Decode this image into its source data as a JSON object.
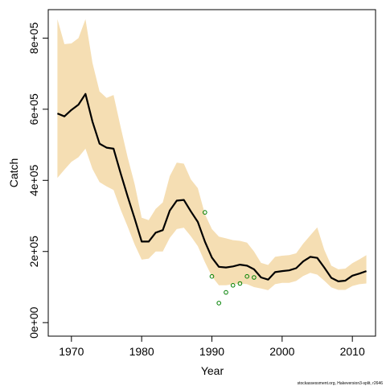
{
  "chart_data": {
    "type": "line",
    "xlabel": "Year",
    "ylabel": "Catch",
    "xlim": [
      1966.7,
      2013.3
    ],
    "ylim": [
      -38000,
      880000
    ],
    "x_ticks": [
      1970,
      1980,
      1990,
      2000,
      2010
    ],
    "x_tick_labels": [
      "1970",
      "1980",
      "1990",
      "2000",
      "2010"
    ],
    "y_ticks": [
      0,
      200000,
      400000,
      600000,
      800000
    ],
    "y_tick_labels": [
      "0e+00",
      "2e+05",
      "4e+05",
      "6e+05",
      "8e+05"
    ],
    "grid": false,
    "legend": "none",
    "footnote": "stockassessment.org, Hakeversion3-split, r2646",
    "colors": {
      "band": "#f5deb3",
      "line": "#000000",
      "points": "#008000"
    },
    "x": [
      1968,
      1969,
      1970,
      1971,
      1972,
      1973,
      1974,
      1975,
      1976,
      1977,
      1978,
      1979,
      1980,
      1981,
      1982,
      1983,
      1984,
      1985,
      1986,
      1987,
      1988,
      1989,
      1990,
      1991,
      1992,
      1993,
      1994,
      1995,
      1996,
      1997,
      1998,
      1999,
      2000,
      2001,
      2002,
      2003,
      2004,
      2005,
      2006,
      2007,
      2008,
      2009,
      2010,
      2011,
      2012
    ],
    "series": [
      {
        "type": "line",
        "values": [
          588000,
          580000,
          598000,
          613000,
          643000,
          565000,
          503000,
          492000,
          489000,
          420000,
          355000,
          293000,
          228000,
          228000,
          253000,
          260000,
          315000,
          343000,
          345000,
          313000,
          283000,
          228000,
          183000,
          157000,
          155000,
          158000,
          163000,
          160000,
          150000,
          127000,
          121000,
          142000,
          145000,
          147000,
          153000,
          172000,
          185000,
          182000,
          155000,
          126000,
          116000,
          118000,
          132000,
          138000,
          145000
        ]
      },
      {
        "type": "band",
        "lower": [
          407000,
          430000,
          452000,
          465000,
          489000,
          432000,
          395000,
          383000,
          373000,
          318000,
          270000,
          220000,
          177000,
          180000,
          200000,
          200000,
          238000,
          263000,
          267000,
          243000,
          215000,
          170000,
          130000,
          105000,
          105000,
          108000,
          110000,
          108000,
          100000,
          96000,
          91000,
          108000,
          112000,
          112000,
          117000,
          131000,
          140000,
          135000,
          118000,
          99000,
          92000,
          92000,
          103000,
          108000,
          110000
        ],
        "upper": [
          853000,
          783000,
          785000,
          800000,
          853000,
          730000,
          650000,
          632000,
          640000,
          550000,
          465000,
          390000,
          295000,
          288000,
          320000,
          338000,
          412000,
          450000,
          447000,
          403000,
          378000,
          305000,
          263000,
          242000,
          237000,
          232000,
          230000,
          225000,
          200000,
          168000,
          162000,
          185000,
          188000,
          190000,
          195000,
          222000,
          245000,
          268000,
          205000,
          160000,
          150000,
          152000,
          167000,
          178000,
          190000
        ]
      },
      {
        "type": "scatter",
        "x": [
          1989,
          1990,
          1991,
          1992,
          1993,
          1994,
          1995,
          1996
        ],
        "values": [
          310000,
          130000,
          55000,
          85000,
          105000,
          110000,
          130000,
          127000
        ]
      }
    ]
  }
}
